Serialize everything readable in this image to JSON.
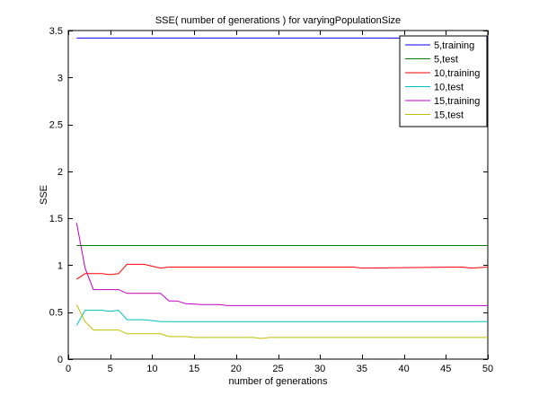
{
  "chart_data": {
    "type": "line",
    "title": "SSE( number of generations ) for varyingPopulationSize",
    "xlabel": "number of generations",
    "ylabel": "SSE",
    "xlim": [
      0,
      50
    ],
    "ylim": [
      0,
      3.5
    ],
    "xticks": [
      0,
      5,
      10,
      15,
      20,
      25,
      30,
      35,
      40,
      45,
      50
    ],
    "yticks": [
      0,
      0.5,
      1,
      1.5,
      2,
      2.5,
      3,
      3.5
    ],
    "xtick_labels": [
      "0",
      "5",
      "10",
      "15",
      "20",
      "25",
      "30",
      "35",
      "40",
      "45",
      "50"
    ],
    "ytick_labels": [
      "0",
      "0.5",
      "1",
      "1.5",
      "2",
      "2.5",
      "3",
      "3.5"
    ],
    "grid": false,
    "legend_position": "top-right",
    "series": [
      {
        "name": "5,training",
        "color": "#0000ff",
        "x": [
          1,
          50
        ],
        "y": [
          3.42,
          3.42
        ]
      },
      {
        "name": "5,test",
        "color": "#008000",
        "x": [
          1,
          50
        ],
        "y": [
          1.21,
          1.21
        ]
      },
      {
        "name": "10,training",
        "color": "#ff0000",
        "x": [
          1,
          2,
          3,
          4,
          5,
          6,
          7,
          8,
          9,
          10,
          11,
          12,
          34,
          35,
          47,
          48,
          50
        ],
        "y": [
          0.85,
          0.91,
          0.91,
          0.91,
          0.9,
          0.91,
          1.01,
          1.01,
          1.01,
          0.99,
          0.97,
          0.98,
          0.98,
          0.97,
          0.98,
          0.97,
          0.98
        ]
      },
      {
        "name": "10,test",
        "color": "#00bfbf",
        "x": [
          1,
          2,
          3,
          4,
          5,
          6,
          7,
          8,
          9,
          10,
          11,
          50
        ],
        "y": [
          0.36,
          0.52,
          0.52,
          0.52,
          0.51,
          0.52,
          0.42,
          0.42,
          0.42,
          0.41,
          0.4,
          0.4
        ]
      },
      {
        "name": "15,training",
        "color": "#bf00bf",
        "x": [
          1,
          2,
          3,
          4,
          5,
          6,
          7,
          8,
          9,
          10,
          11,
          12,
          13,
          14,
          16,
          18,
          19,
          50
        ],
        "y": [
          1.45,
          0.97,
          0.74,
          0.74,
          0.74,
          0.74,
          0.7,
          0.7,
          0.7,
          0.7,
          0.7,
          0.62,
          0.62,
          0.59,
          0.58,
          0.58,
          0.57,
          0.57
        ]
      },
      {
        "name": "15,test",
        "color": "#bfbf00",
        "x": [
          1,
          2,
          3,
          4,
          5,
          6,
          7,
          8,
          9,
          10,
          11,
          12,
          13,
          14,
          15,
          22,
          23,
          24,
          50
        ],
        "y": [
          0.58,
          0.4,
          0.31,
          0.31,
          0.31,
          0.31,
          0.27,
          0.27,
          0.27,
          0.27,
          0.27,
          0.24,
          0.24,
          0.24,
          0.23,
          0.23,
          0.22,
          0.23,
          0.23
        ]
      }
    ]
  }
}
